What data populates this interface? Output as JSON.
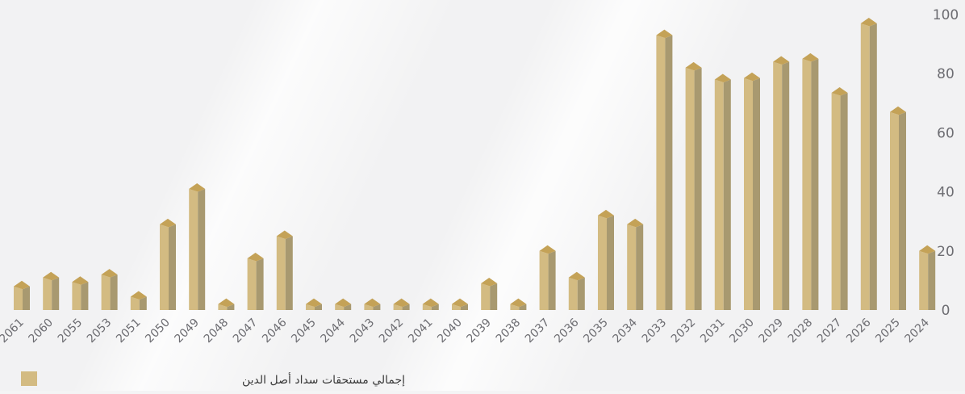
{
  "chart_data": {
    "type": "bar",
    "categories": [
      "2061",
      "2060",
      "2055",
      "2053",
      "2051",
      "2050",
      "2049",
      "2048",
      "2047",
      "2046",
      "2045",
      "2044",
      "2043",
      "2042",
      "2041",
      "2040",
      "2039",
      "2038",
      "2037",
      "2036",
      "2035",
      "2034",
      "2033",
      "2032",
      "2031",
      "2030",
      "2029",
      "2028",
      "2027",
      "2026",
      "2025",
      "2024"
    ],
    "series": [
      {
        "name": "إجمالي مستحقات سداد أصل الدين",
        "values": [
          8,
          11,
          9.5,
          12,
          4.5,
          29,
          41,
          2,
          17.5,
          25,
          2,
          2,
          2,
          2,
          2,
          2,
          9,
          2,
          20,
          11,
          32,
          29,
          93,
          82,
          78,
          78.5,
          84,
          85,
          73.5,
          97,
          67,
          20
        ]
      }
    ],
    "ylim": [
      0,
      100
    ],
    "yticks": [
      0,
      20,
      40,
      60,
      80,
      100
    ],
    "xlabel": "",
    "ylabel": "",
    "title": "",
    "grid": false,
    "legend_position": "bottom-left",
    "colors": {
      "bar_front": "#d3bb82",
      "bar_side": "#a89970",
      "bar_top": "#c4a257",
      "tick_text": "#6d6d72"
    }
  }
}
